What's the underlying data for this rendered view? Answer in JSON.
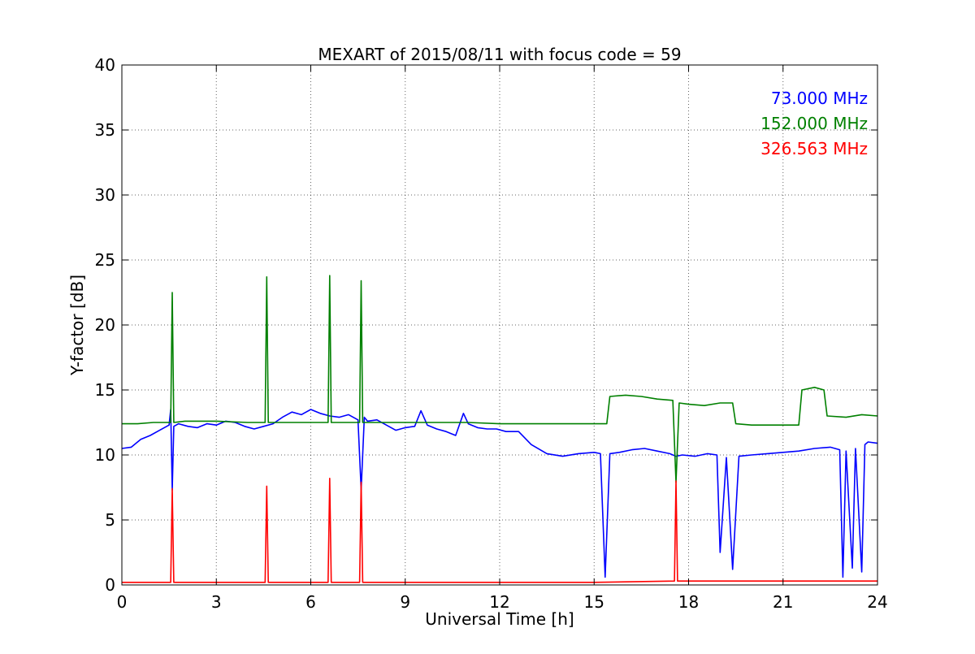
{
  "chart_data": {
    "type": "line",
    "title": "MEXART of 2015/08/11 with focus code = 59",
    "xlabel": "Universal Time [h]",
    "ylabel": "Y-factor [dB]",
    "xlim": [
      0,
      24
    ],
    "ylim": [
      0,
      40
    ],
    "xticks": [
      0,
      3,
      6,
      9,
      12,
      15,
      18,
      21,
      24
    ],
    "xtick_labels": [
      "0",
      "3",
      "6",
      "9",
      "12",
      "15",
      "18",
      "21",
      "24"
    ],
    "yticks": [
      0,
      5,
      10,
      15,
      20,
      25,
      30,
      35,
      40
    ],
    "ytick_labels": [
      "0",
      "5",
      "10",
      "15",
      "20",
      "25",
      "30",
      "35",
      "40"
    ],
    "grid": true,
    "legend_position": "top-right",
    "series": [
      {
        "name": "73.000 MHz",
        "color": "#0000ff",
        "x": [
          0.0,
          0.3,
          0.6,
          0.9,
          1.2,
          1.5,
          1.55,
          1.6,
          1.65,
          1.8,
          2.1,
          2.4,
          2.7,
          3.0,
          3.3,
          3.6,
          3.9,
          4.2,
          4.5,
          4.8,
          5.1,
          5.4,
          5.7,
          6.0,
          6.3,
          6.6,
          6.9,
          7.2,
          7.5,
          7.6,
          7.7,
          7.8,
          8.1,
          8.4,
          8.7,
          9.0,
          9.3,
          9.5,
          9.7,
          10.0,
          10.3,
          10.6,
          10.85,
          11.0,
          11.3,
          11.6,
          11.9,
          12.2,
          12.6,
          13.0,
          13.5,
          14.0,
          14.5,
          15.0,
          15.2,
          15.35,
          15.5,
          15.8,
          16.2,
          16.6,
          17.0,
          17.4,
          17.6,
          17.8,
          18.2,
          18.6,
          18.9,
          19.0,
          19.2,
          19.4,
          19.6,
          20.0,
          20.5,
          21.0,
          21.5,
          22.0,
          22.5,
          22.8,
          22.9,
          23.0,
          23.2,
          23.3,
          23.5,
          23.6,
          23.7,
          24.0
        ],
        "values": [
          10.5,
          10.6,
          11.2,
          11.5,
          11.9,
          12.3,
          13.5,
          7.3,
          12.2,
          12.4,
          12.2,
          12.1,
          12.4,
          12.3,
          12.6,
          12.5,
          12.2,
          12.0,
          12.2,
          12.4,
          12.9,
          13.3,
          13.1,
          13.5,
          13.2,
          13.0,
          12.9,
          13.1,
          12.7,
          7.3,
          12.9,
          12.6,
          12.7,
          12.3,
          11.9,
          12.1,
          12.2,
          13.4,
          12.3,
          12.0,
          11.8,
          11.5,
          13.2,
          12.4,
          12.1,
          12.0,
          12.0,
          11.8,
          11.8,
          10.8,
          10.1,
          9.9,
          10.1,
          10.2,
          10.1,
          0.6,
          10.1,
          10.2,
          10.4,
          10.5,
          10.3,
          10.1,
          9.9,
          10.0,
          9.9,
          10.1,
          10.0,
          2.5,
          9.8,
          1.2,
          9.9,
          10.0,
          10.1,
          10.2,
          10.3,
          10.5,
          10.6,
          10.4,
          0.6,
          10.3,
          1.3,
          10.5,
          1.0,
          10.8,
          11.0,
          10.9
        ]
      },
      {
        "name": "152.000 MHz",
        "color": "#008000",
        "x": [
          0.0,
          0.5,
          1.0,
          1.5,
          1.55,
          1.6,
          1.65,
          2.0,
          3.0,
          4.0,
          4.55,
          4.6,
          4.65,
          5.0,
          6.0,
          6.55,
          6.6,
          6.65,
          7.0,
          7.55,
          7.6,
          7.65,
          8.0,
          9.0,
          10.0,
          11.0,
          12.0,
          13.0,
          14.0,
          15.0,
          15.4,
          15.5,
          16.0,
          16.5,
          17.0,
          17.5,
          17.6,
          17.7,
          18.0,
          18.5,
          19.0,
          19.4,
          19.5,
          20.0,
          20.5,
          21.0,
          21.5,
          21.6,
          22.0,
          22.3,
          22.4,
          23.0,
          23.5,
          24.0
        ],
        "values": [
          12.4,
          12.4,
          12.5,
          12.5,
          12.5,
          22.5,
          12.5,
          12.6,
          12.6,
          12.5,
          12.5,
          23.7,
          12.5,
          12.5,
          12.5,
          12.5,
          23.8,
          12.5,
          12.5,
          12.5,
          23.4,
          12.5,
          12.5,
          12.5,
          12.5,
          12.5,
          12.4,
          12.4,
          12.4,
          12.4,
          12.4,
          14.5,
          14.6,
          14.5,
          14.3,
          14.2,
          7.9,
          14.0,
          13.9,
          13.8,
          14.0,
          14.0,
          12.4,
          12.3,
          12.3,
          12.3,
          12.3,
          15.0,
          15.2,
          15.0,
          13.0,
          12.9,
          13.1,
          13.0
        ]
      },
      {
        "name": "326.563 MHz",
        "color": "#ff0000",
        "x": [
          0.0,
          1.0,
          1.55,
          1.6,
          1.65,
          3.0,
          4.55,
          4.6,
          4.65,
          6.0,
          6.55,
          6.6,
          6.65,
          7.55,
          7.6,
          7.65,
          9.0,
          12.0,
          15.0,
          17.55,
          17.6,
          17.65,
          20.0,
          22.0,
          24.0
        ],
        "values": [
          0.2,
          0.2,
          0.2,
          7.4,
          0.2,
          0.2,
          0.2,
          7.6,
          0.2,
          0.2,
          0.2,
          8.2,
          0.2,
          0.2,
          7.9,
          0.2,
          0.2,
          0.2,
          0.2,
          0.3,
          8.0,
          0.3,
          0.3,
          0.3,
          0.3
        ]
      }
    ]
  }
}
